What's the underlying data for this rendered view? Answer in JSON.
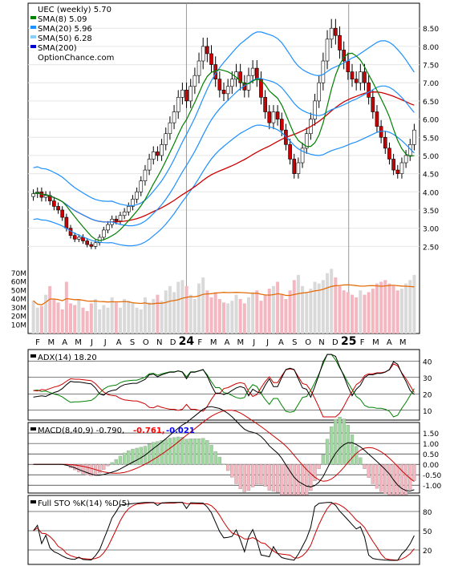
{
  "chart_data": [
    {
      "type": "candlestick",
      "title": "UEC (weekly) 5.70",
      "watermark": "OptionChance.com",
      "legend": [
        {
          "label": "SMA(8) 5.09",
          "color": "#008000"
        },
        {
          "label": "SMA(20) 5.96",
          "color": "#1e90ff"
        },
        {
          "label": "SMA(50) 6.28",
          "color": "#87cefa"
        },
        {
          "label": "SMA(200)",
          "color": "#0000cd"
        }
      ],
      "legend_position": "top-left",
      "ylim": [
        2.0,
        9.1
      ],
      "yticks": [
        "2.50",
        "3.00",
        "3.50",
        "4.00",
        "4.50",
        "5.00",
        "5.50",
        "6.00",
        "6.50",
        "7.00",
        "7.50",
        "8.00",
        "8.50"
      ],
      "ytick_values": [
        2.5,
        3.0,
        3.5,
        4.0,
        4.5,
        5.0,
        5.5,
        6.0,
        6.5,
        7.0,
        7.5,
        8.0,
        8.5
      ],
      "close": [
        3.95,
        4.0,
        3.85,
        3.9,
        3.75,
        3.6,
        3.5,
        3.3,
        3.0,
        2.8,
        2.7,
        2.75,
        2.65,
        2.55,
        2.5,
        2.6,
        2.75,
        2.95,
        3.1,
        3.25,
        3.2,
        3.35,
        3.45,
        3.6,
        3.8,
        4.0,
        4.3,
        4.6,
        4.9,
        5.1,
        5.0,
        5.3,
        5.6,
        5.9,
        6.2,
        6.6,
        6.8,
        6.5,
        6.9,
        7.2,
        7.6,
        8.0,
        7.8,
        7.5,
        7.1,
        6.8,
        6.7,
        6.9,
        7.1,
        7.3,
        7.0,
        6.8,
        7.2,
        7.4,
        7.1,
        6.6,
        6.2,
        5.9,
        6.2,
        6.0,
        5.7,
        5.3,
        4.9,
        4.5,
        4.8,
        5.2,
        5.6,
        6.0,
        6.5,
        7.0,
        7.6,
        8.2,
        8.5,
        8.3,
        7.9,
        7.6,
        7.3,
        7.1,
        7.0,
        7.3,
        7.0,
        6.6,
        6.2,
        5.8,
        5.5,
        5.2,
        4.9,
        4.6,
        4.5,
        4.8,
        5.0,
        5.3,
        5.7
      ],
      "sma8_last": 5.09,
      "sma20_last": 5.96,
      "sma50_last": 6.28,
      "volume_axis": [
        "70M",
        "60M",
        "50M",
        "40M",
        "30M",
        "20M",
        "10M"
      ],
      "volume_ylim": [
        0,
        80
      ],
      "volume": [
        38,
        30,
        32,
        45,
        55,
        40,
        36,
        28,
        60,
        35,
        33,
        40,
        30,
        26,
        35,
        40,
        28,
        33,
        30,
        42,
        36,
        30,
        40,
        38,
        35,
        30,
        28,
        42,
        36,
        40,
        45,
        38,
        50,
        55,
        48,
        60,
        62,
        55,
        45,
        40,
        58,
        65,
        50,
        42,
        48,
        40,
        36,
        35,
        38,
        45,
        40,
        35,
        42,
        48,
        50,
        38,
        45,
        52,
        55,
        60,
        45,
        40,
        50,
        62,
        68,
        55,
        48,
        52,
        60,
        58,
        62,
        70,
        75,
        65,
        55,
        50,
        48,
        45,
        42,
        50,
        45,
        48,
        52,
        58,
        60,
        62,
        58,
        55,
        50,
        52,
        58,
        62,
        68
      ],
      "x_labels": [
        "F",
        "M",
        "A",
        "M",
        "J",
        "J",
        "A",
        "S",
        "O",
        "N",
        "D",
        "24",
        "F",
        "M",
        "A",
        "M",
        "J",
        "J",
        "A",
        "S",
        "O",
        "N",
        "D",
        "25",
        "F",
        "M",
        "A",
        "M"
      ]
    },
    {
      "type": "line",
      "title": "ADX(14) 18.20",
      "ylim": [
        5,
        45
      ],
      "yticks": [
        "40",
        "30",
        "20",
        "10"
      ],
      "ytick_values": [
        40,
        30,
        20,
        10
      ]
    },
    {
      "type": "line",
      "title": "MACD(8,40,9) -0.790,",
      "values_text": [
        {
          "text": "-0.761,",
          "color": "#ff0000"
        },
        {
          "text": "-0.021",
          "color": "#0000ff"
        }
      ],
      "ylim": [
        -1.3,
        1.85
      ],
      "yticks": [
        "1.50",
        "1.00",
        "0.50",
        "0.00",
        "-0.50",
        "-1.00"
      ],
      "ytick_values": [
        1.5,
        1.0,
        0.5,
        0.0,
        -0.5,
        -1.0
      ]
    },
    {
      "type": "line",
      "title": "Full STO %K(14) %D(5)",
      "ylim": [
        0,
        100
      ],
      "yticks": [
        "80",
        "50",
        "20"
      ],
      "ytick_values": [
        80,
        50,
        20
      ]
    }
  ]
}
